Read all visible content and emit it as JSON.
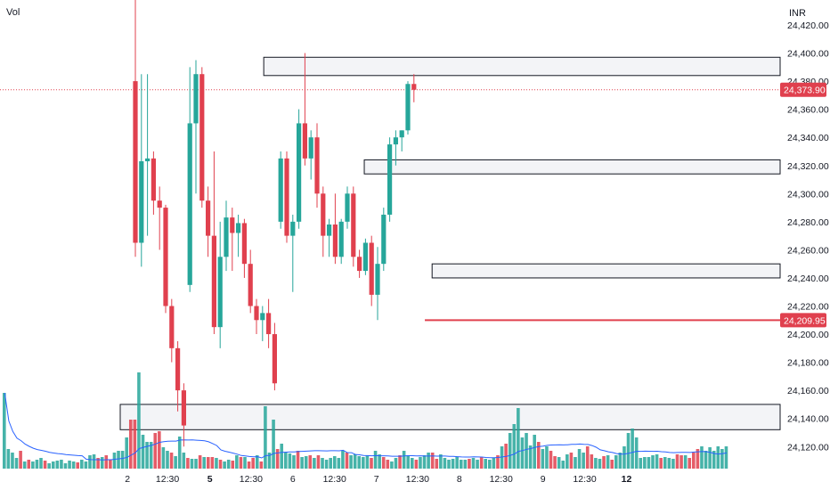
{
  "header": {
    "left_label": "Vol",
    "currency": "INR"
  },
  "colors": {
    "up": "#26a69a",
    "down": "#e0404e",
    "zone_fill": "#eef0f3",
    "zone_stroke": "#131722",
    "vol_ma": "#2962ff",
    "grid": "#e0e3eb"
  },
  "chart_data": {
    "type": "candlestick",
    "price_axis": {
      "ylim": [
        24115,
        24450
      ],
      "ticks": [
        "24,420.00",
        "24,400.00",
        "24,380.00",
        "24,360.00",
        "24,340.00",
        "24,320.00",
        "24,300.00",
        "24,280.00",
        "24,260.00",
        "24,240.00",
        "24,220.00",
        "24,200.00",
        "24,180.00",
        "24,160.00",
        "24,140.00",
        "24,120.00"
      ],
      "last_price_label": "24,373.90",
      "last_price": 24373.9,
      "line_label": "24,209.95",
      "line_price": 24209.95
    },
    "time_axis": {
      "labels": [
        {
          "text": "2",
          "bold": false,
          "xi": -1.3
        },
        {
          "text": "12:30",
          "bold": false,
          "xi": 5.3
        },
        {
          "text": "5",
          "bold": true,
          "xi": 12.3
        },
        {
          "text": "12:30",
          "bold": false,
          "xi": 19.1
        },
        {
          "text": "6",
          "bold": false,
          "xi": 26
        },
        {
          "text": "12:30",
          "bold": false,
          "xi": 32.9
        },
        {
          "text": "7",
          "bold": false,
          "xi": 39.8
        },
        {
          "text": "12:30",
          "bold": false,
          "xi": 46.6
        },
        {
          "text": "8",
          "bold": false,
          "xi": 53.5
        },
        {
          "text": "12:30",
          "bold": false,
          "xi": 60.4
        },
        {
          "text": "9",
          "bold": false,
          "xi": 67.3
        },
        {
          "text": "12:30",
          "bold": false,
          "xi": 74.2
        },
        {
          "text": "12",
          "bold": true,
          "xi": 81.1
        }
      ]
    },
    "candles": [
      [
        24380,
        24660,
        24255,
        24265
      ],
      [
        24265,
        24385,
        24248,
        24323
      ],
      [
        24323,
        24385,
        24270,
        24325
      ],
      [
        24325,
        24330,
        24285,
        24295
      ],
      [
        24295,
        24305,
        24260,
        24290
      ],
      [
        24290,
        24292,
        24215,
        24220
      ],
      [
        24220,
        24225,
        24180,
        24190
      ],
      [
        24190,
        24195,
        24145,
        24160
      ],
      [
        24160,
        24165,
        24120,
        24135
      ],
      [
        24235,
        24390,
        24230,
        24350
      ],
      [
        24350,
        24395,
        24300,
        24385
      ],
      [
        24385,
        24390,
        24290,
        24295
      ],
      [
        24295,
        24305,
        24255,
        24270
      ],
      [
        24270,
        24330,
        24200,
        24205
      ],
      [
        24205,
        24280,
        24190,
        24255
      ],
      [
        24255,
        24295,
        24245,
        24283
      ],
      [
        24283,
        24290,
        24245,
        24272
      ],
      [
        24272,
        24285,
        24255,
        24279
      ],
      [
        24279,
        24282,
        24240,
        24250
      ],
      [
        24250,
        24260,
        24215,
        24220
      ],
      [
        24220,
        24225,
        24200,
        24210
      ],
      [
        24210,
        24220,
        24195,
        24215
      ],
      [
        24215,
        24225,
        24190,
        24200
      ],
      [
        24200,
        24208,
        24160,
        24165
      ],
      [
        24280,
        24330,
        24275,
        24325
      ],
      [
        24325,
        24330,
        24265,
        24270
      ],
      [
        24270,
        24285,
        24230,
        24280
      ],
      [
        24280,
        24360,
        24275,
        24350
      ],
      [
        24350,
        24400,
        24320,
        24325
      ],
      [
        24325,
        24345,
        24310,
        24340
      ],
      [
        24340,
        24350,
        24290,
        24300
      ],
      [
        24300,
        24305,
        24255,
        24270
      ],
      [
        24270,
        24282,
        24255,
        24278
      ],
      [
        24278,
        24300,
        24250,
        24255
      ],
      [
        24255,
        24282,
        24250,
        24280
      ],
      [
        24280,
        24305,
        24275,
        24300
      ],
      [
        24300,
        24305,
        24248,
        24255
      ],
      [
        24255,
        24260,
        24240,
        24245
      ],
      [
        24245,
        24268,
        24242,
        24265
      ],
      [
        24265,
        24270,
        24220,
        24228
      ],
      [
        24228,
        24262,
        24210,
        24250
      ],
      [
        24250,
        24290,
        24245,
        24285
      ],
      [
        24285,
        24340,
        24280,
        24335
      ],
      [
        24335,
        24345,
        24320,
        24340
      ],
      [
        24340,
        24345,
        24330,
        24345
      ],
      [
        24345,
        24380,
        24342,
        24378
      ],
      [
        24378,
        24385,
        24365,
        24373.9
      ]
    ],
    "volumes": [
      [
        85,
        1
      ],
      [
        22,
        1
      ],
      [
        18,
        1
      ],
      [
        12,
        1
      ],
      [
        20,
        0
      ],
      [
        8,
        1
      ],
      [
        10,
        0
      ],
      [
        8,
        1
      ],
      [
        10,
        1
      ],
      [
        12,
        1
      ],
      [
        9,
        0
      ],
      [
        6,
        1
      ],
      [
        8,
        1
      ],
      [
        9,
        1
      ],
      [
        10,
        1
      ],
      [
        6,
        1
      ],
      [
        9,
        1
      ],
      [
        8,
        1
      ],
      [
        7,
        0
      ],
      [
        10,
        1
      ],
      [
        8,
        1
      ],
      [
        15,
        1
      ],
      [
        16,
        1
      ],
      [
        12,
        0
      ],
      [
        13,
        1
      ],
      [
        15,
        0
      ],
      [
        10,
        0
      ],
      [
        18,
        1
      ],
      [
        20,
        1
      ],
      [
        20,
        1
      ],
      [
        35,
        1
      ],
      [
        55,
        0
      ],
      [
        55,
        0
      ],
      [
        108,
        1
      ],
      [
        38,
        1
      ],
      [
        30,
        1
      ],
      [
        30,
        1
      ],
      [
        40,
        0
      ],
      [
        42,
        0
      ],
      [
        24,
        1
      ],
      [
        20,
        1
      ],
      [
        18,
        0
      ],
      [
        14,
        1
      ],
      [
        36,
        1
      ],
      [
        18,
        1
      ],
      [
        12,
        0
      ],
      [
        11,
        1
      ],
      [
        11,
        1
      ],
      [
        15,
        0
      ],
      [
        13,
        1
      ],
      [
        13,
        0
      ],
      [
        13,
        0
      ],
      [
        12,
        1
      ],
      [
        10,
        0
      ],
      [
        8,
        1
      ],
      [
        10,
        1
      ],
      [
        9,
        0
      ],
      [
        15,
        1
      ],
      [
        13,
        0
      ],
      [
        13,
        1
      ],
      [
        8,
        0
      ],
      [
        12,
        0
      ],
      [
        15,
        1
      ],
      [
        8,
        0
      ],
      [
        70,
        1
      ],
      [
        18,
        1
      ],
      [
        55,
        1
      ],
      [
        22,
        0
      ],
      [
        28,
        1
      ],
      [
        18,
        1
      ],
      [
        17,
        1
      ],
      [
        15,
        1
      ],
      [
        20,
        0
      ],
      [
        13,
        1
      ],
      [
        14,
        1
      ],
      [
        15,
        0
      ],
      [
        12,
        1
      ],
      [
        15,
        0
      ],
      [
        12,
        1
      ],
      [
        10,
        1
      ],
      [
        12,
        1
      ],
      [
        14,
        1
      ],
      [
        12,
        1
      ],
      [
        20,
        1
      ],
      [
        18,
        0
      ],
      [
        15,
        1
      ],
      [
        16,
        1
      ],
      [
        14,
        1
      ],
      [
        13,
        1
      ],
      [
        15,
        1
      ],
      [
        12,
        0
      ],
      [
        20,
        1
      ],
      [
        16,
        1
      ],
      [
        13,
        0
      ],
      [
        10,
        0
      ],
      [
        8,
        1
      ],
      [
        12,
        1
      ],
      [
        15,
        0
      ],
      [
        20,
        1
      ],
      [
        15,
        1
      ],
      [
        12,
        1
      ],
      [
        10,
        0
      ],
      [
        13,
        1
      ],
      [
        15,
        1
      ],
      [
        18,
        1
      ],
      [
        18,
        0
      ],
      [
        11,
        0
      ],
      [
        16,
        1
      ],
      [
        12,
        1
      ],
      [
        10,
        1
      ],
      [
        11,
        1
      ],
      [
        13,
        1
      ],
      [
        10,
        1
      ],
      [
        10,
        1
      ],
      [
        11,
        0
      ],
      [
        12,
        1
      ],
      [
        10,
        1
      ],
      [
        13,
        0
      ],
      [
        11,
        1
      ],
      [
        10,
        1
      ],
      [
        12,
        1
      ],
      [
        15,
        0
      ],
      [
        25,
        1
      ],
      [
        28,
        0
      ],
      [
        40,
        1
      ],
      [
        50,
        1
      ],
      [
        68,
        1
      ],
      [
        35,
        1
      ],
      [
        40,
        1
      ],
      [
        26,
        1
      ],
      [
        38,
        1
      ],
      [
        30,
        0
      ],
      [
        22,
        1
      ],
      [
        25,
        1
      ],
      [
        20,
        0
      ],
      [
        14,
        0
      ],
      [
        13,
        1
      ],
      [
        9,
        1
      ],
      [
        16,
        1
      ],
      [
        18,
        0
      ],
      [
        13,
        1
      ],
      [
        22,
        1
      ],
      [
        18,
        1
      ],
      [
        25,
        0
      ],
      [
        16,
        0
      ],
      [
        12,
        1
      ],
      [
        11,
        1
      ],
      [
        14,
        0
      ],
      [
        15,
        1
      ],
      [
        10,
        0
      ],
      [
        15,
        1
      ],
      [
        18,
        1
      ],
      [
        25,
        1
      ],
      [
        40,
        1
      ],
      [
        45,
        1
      ],
      [
        35,
        1
      ],
      [
        12,
        1
      ],
      [
        13,
        1
      ],
      [
        13,
        1
      ],
      [
        15,
        1
      ],
      [
        16,
        1
      ],
      [
        12,
        0
      ],
      [
        13,
        1
      ],
      [
        12,
        1
      ],
      [
        11,
        1
      ],
      [
        16,
        0
      ],
      [
        15,
        0
      ],
      [
        15,
        1
      ],
      [
        12,
        0
      ],
      [
        18,
        0
      ],
      [
        22,
        0
      ],
      [
        25,
        1
      ],
      [
        20,
        1
      ],
      [
        24,
        1
      ],
      [
        20,
        1
      ],
      [
        25,
        1
      ],
      [
        22,
        1
      ],
      [
        25,
        1
      ]
    ],
    "zones": [
      {
        "lo": 24384,
        "hi": 24397,
        "from_xi": 21.2,
        "label": "zone-1"
      },
      {
        "lo": 24314,
        "hi": 24324,
        "from_xi": 37.8,
        "label": "zone-2"
      },
      {
        "lo": 24240,
        "hi": 24250,
        "from_xi": 49,
        "label": "zone-3"
      },
      {
        "lo": 24132,
        "hi": 24150,
        "from_xi": -2.5,
        "label": "zone-4"
      }
    ]
  }
}
